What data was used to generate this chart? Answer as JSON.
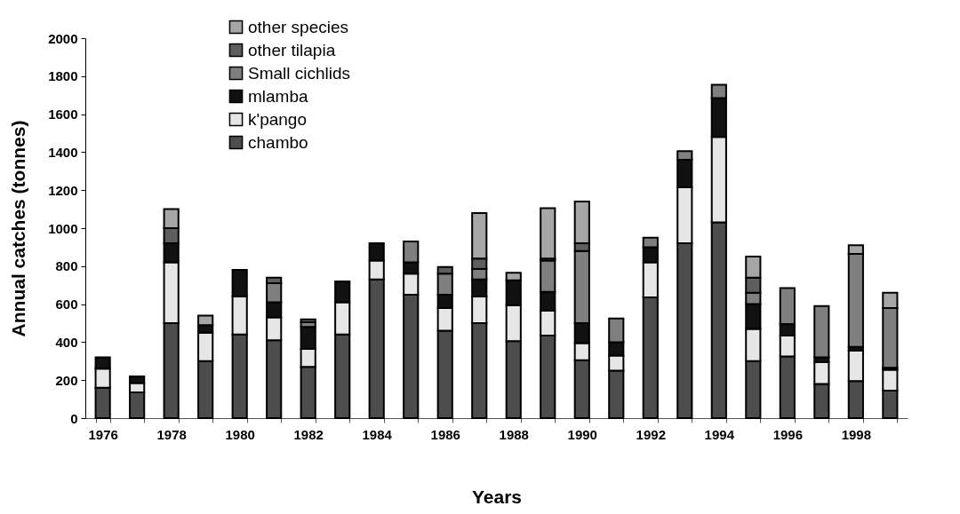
{
  "chart_data": {
    "type": "bar",
    "stacked": true,
    "xlabel": "Years",
    "ylabel": "Annual catches (tonnes)",
    "categories": [
      "1976",
      null,
      "1978",
      null,
      "1980",
      null,
      "1982",
      null,
      "1984",
      null,
      "1986",
      null,
      "1988",
      null,
      "1990",
      null,
      "1992",
      null,
      "1994",
      null,
      "1996",
      null,
      "1998",
      null
    ],
    "ylim": [
      0,
      2000
    ],
    "yticks": [
      0,
      200,
      400,
      600,
      800,
      1000,
      1200,
      1400,
      1600,
      1800,
      2000
    ],
    "grid": false,
    "legend": "top left",
    "series": [
      {
        "name": "chambo",
        "color": "#4d4d4d",
        "values": [
          160,
          135,
          500,
          300,
          440,
          410,
          270,
          440,
          730,
          650,
          460,
          500,
          405,
          435,
          305,
          250,
          635,
          920,
          1030,
          300,
          325,
          180,
          195,
          145
        ]
      },
      {
        "name": "k'pango",
        "color": "#e6e6e6",
        "values": [
          100,
          50,
          320,
          150,
          200,
          120,
          95,
          170,
          100,
          110,
          120,
          140,
          190,
          130,
          90,
          80,
          185,
          295,
          450,
          170,
          110,
          115,
          160,
          110
        ]
      },
      {
        "name": "mlamba",
        "color": "#111111",
        "values": [
          60,
          35,
          100,
          40,
          140,
          80,
          115,
          110,
          90,
          60,
          70,
          90,
          130,
          100,
          105,
          70,
          80,
          145,
          205,
          130,
          60,
          25,
          20,
          10
        ]
      },
      {
        "name": "Small cichlids",
        "color": "#7f7f7f",
        "values": [
          null,
          null,
          null,
          null,
          null,
          100,
          25,
          null,
          null,
          110,
          110,
          55,
          null,
          165,
          380,
          125,
          50,
          45,
          70,
          60,
          190,
          270,
          490,
          315
        ]
      },
      {
        "name": "other tilapia",
        "color": "#5e5e5e",
        "values": [
          null,
          null,
          80,
          null,
          null,
          30,
          15,
          null,
          null,
          null,
          35,
          55,
          null,
          10,
          40,
          null,
          null,
          null,
          null,
          80,
          null,
          null,
          null,
          null
        ]
      },
      {
        "name": "other species",
        "color": "#a6a6a6",
        "values": [
          null,
          null,
          100,
          50,
          null,
          null,
          null,
          null,
          null,
          null,
          null,
          240,
          40,
          265,
          220,
          null,
          null,
          null,
          null,
          110,
          null,
          null,
          45,
          80
        ]
      }
    ]
  }
}
